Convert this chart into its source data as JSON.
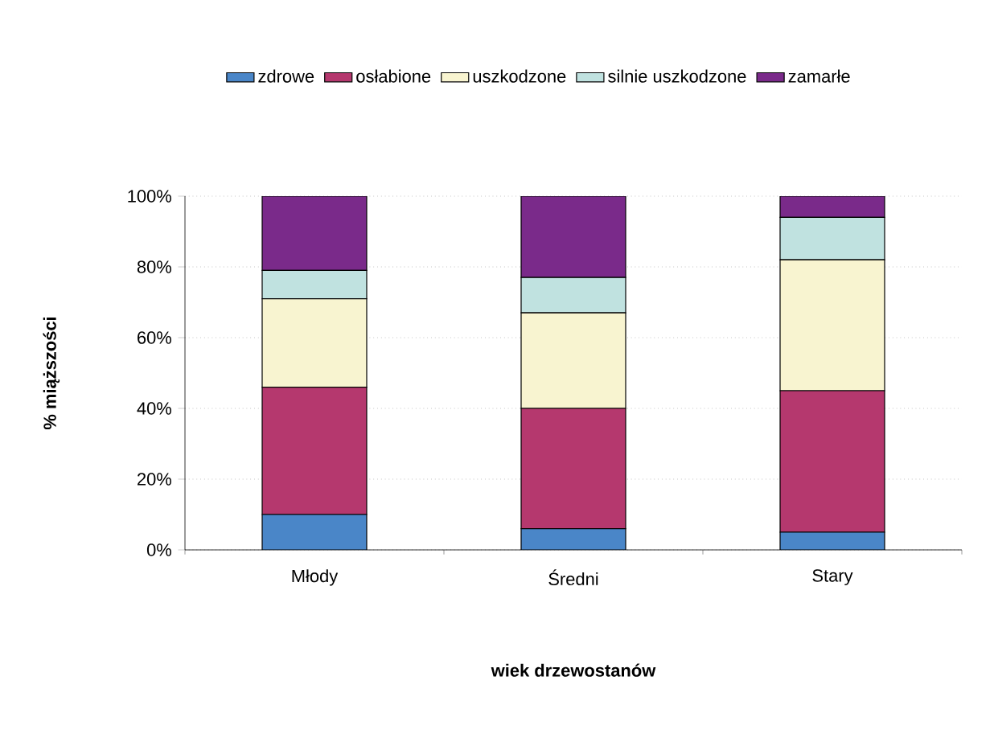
{
  "chart_data": {
    "type": "bar",
    "stacked": true,
    "xlabel": "wiek drzewostanów",
    "ylabel": "% miąższości",
    "categories": [
      "Młody",
      "Średni",
      "Stary"
    ],
    "series": [
      {
        "name": "zdrowe",
        "color": "#4a86c8",
        "values": [
          10,
          6,
          5
        ]
      },
      {
        "name": "osłabione",
        "color": "#b5386e",
        "values": [
          36,
          34,
          40
        ]
      },
      {
        "name": "uszkodzone",
        "color": "#f8f4d0",
        "values": [
          25,
          27,
          37
        ]
      },
      {
        "name": "silnie uszkodzone",
        "color": "#c0e2e0",
        "values": [
          8,
          10,
          12
        ]
      },
      {
        "name": "zamarłe",
        "color": "#7a2a8a",
        "values": [
          21,
          23,
          6
        ]
      }
    ],
    "ylim": [
      0,
      100
    ],
    "yticks": [
      {
        "value": 0,
        "label": "0%"
      },
      {
        "value": 20,
        "label": "20%"
      },
      {
        "value": 40,
        "label": "40%"
      },
      {
        "value": 60,
        "label": "60%"
      },
      {
        "value": 80,
        "label": "80%"
      },
      {
        "value": 100,
        "label": "100%"
      }
    ],
    "grid": "y",
    "legend": "top"
  }
}
